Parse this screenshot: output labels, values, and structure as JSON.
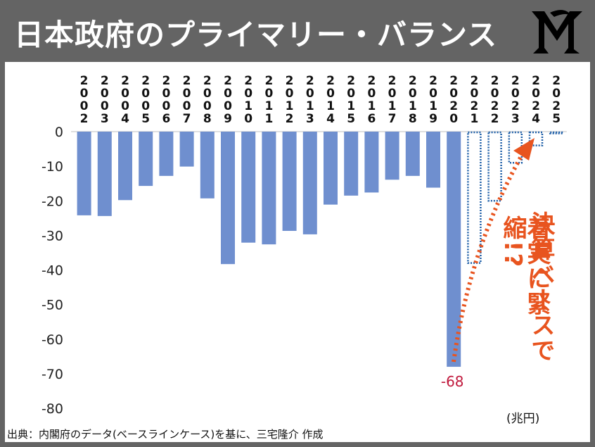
{
  "header": {
    "title": "日本政府のプライマリー・バランス",
    "logo_icon": "mr-monogram-logo"
  },
  "source_note": "出典：内閣府のデータ(ベースラインケース)を基に、三宅隆介 作成",
  "callout": {
    "line1": "決算ベースで",
    "line2": "着実に緊縮!?"
  },
  "colors": {
    "bar_actual": "#6f8fcf",
    "bar_projection": "#1e5fa8",
    "arrow": "#e8541f",
    "data_label": "#c0183c",
    "header_bg": "#646464"
  },
  "chart_data": {
    "type": "bar",
    "categories": [
      "2002",
      "2003",
      "2004",
      "2005",
      "2006",
      "2007",
      "2008",
      "2009",
      "2010",
      "2011",
      "2012",
      "2013",
      "2014",
      "2015",
      "2016",
      "2017",
      "2018",
      "2019",
      "2020",
      "2021",
      "2022",
      "2023",
      "2024",
      "2025"
    ],
    "series": [
      {
        "values": [
          -24.2,
          -24.4,
          -19.8,
          -15.7,
          -12.8,
          -10.1,
          -19.3,
          -38.3,
          -32.1,
          -32.6,
          -28.7,
          -29.7,
          -21.1,
          -18.5,
          -17.6,
          -13.9,
          -12.8,
          -16.2,
          -68,
          -38,
          -20,
          -9,
          -4,
          -0.5
        ],
        "projection_from_index": 19
      }
    ],
    "data_labels": [
      {
        "category": "2020",
        "text": "-68"
      }
    ],
    "ylim": [
      -80,
      0
    ],
    "yticks": [
      0,
      -10,
      -20,
      -30,
      -40,
      -50,
      -60,
      -70,
      -80
    ],
    "unit": "(兆円)",
    "xlabel": "",
    "ylabel": "",
    "grid": false,
    "legend": "none"
  }
}
